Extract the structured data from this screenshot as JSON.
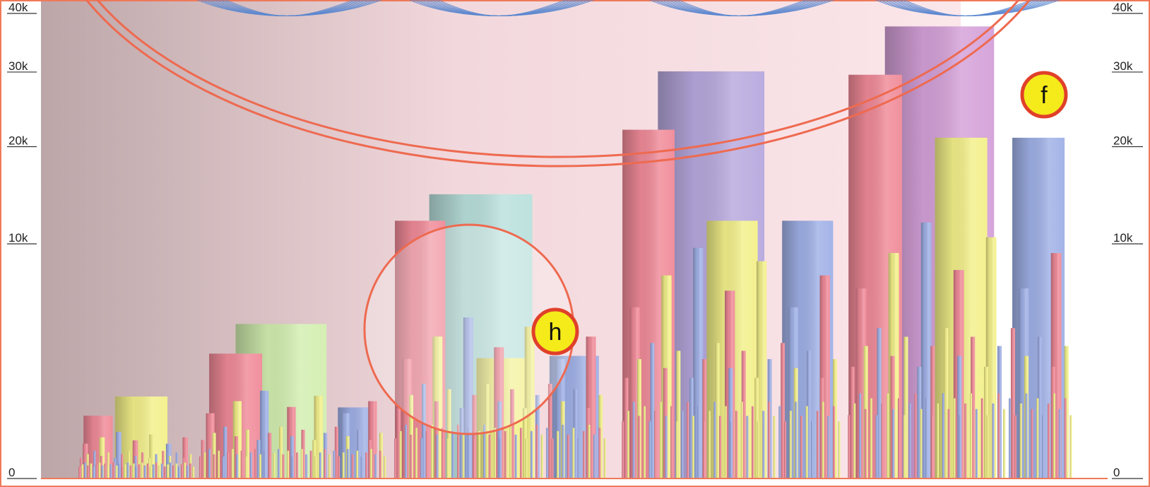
{
  "chart_data": {
    "type": "bar",
    "title": "",
    "xlabel": "",
    "ylabel": "",
    "ylim": [
      0,
      40000
    ],
    "y_ticks": [
      {
        "value": 0,
        "label": "0"
      },
      {
        "value": 10000,
        "label": "10k"
      },
      {
        "value": 20000,
        "label": "20k"
      },
      {
        "value": 30000,
        "label": "30k"
      },
      {
        "value": 40000,
        "label": "40k"
      }
    ],
    "grid": false,
    "legend": "none",
    "series_colors": {
      "red": "#f08a98",
      "yellow": "#f3f08a",
      "blue": "#9fb0e6",
      "green": "#d2eeb0",
      "teal": "#b9e0dc",
      "purple": "#b7a8dd",
      "magenta": "#d4a0d8"
    },
    "groups": [
      {
        "id": "g1",
        "bars": [
          {
            "color": "red",
            "value": 700
          },
          {
            "color": "yellow",
            "value": 1200
          }
        ]
      },
      {
        "id": "g2",
        "bars": [
          {
            "color": "red",
            "value": 2800
          },
          {
            "color": "green",
            "value": 4300
          },
          {
            "color": "blue",
            "value": 900
          }
        ]
      },
      {
        "id": "g3",
        "bars": [
          {
            "color": "red",
            "value": 12000
          },
          {
            "color": "teal",
            "value": 14600
          },
          {
            "color": "yellow",
            "value": 2600
          },
          {
            "color": "blue",
            "value": 2700
          }
        ]
      },
      {
        "id": "g4",
        "bars": [
          {
            "color": "red",
            "value": 22000
          },
          {
            "color": "purple",
            "value": 30000
          },
          {
            "color": "yellow",
            "value": 12000
          },
          {
            "color": "blue",
            "value": 12000
          }
        ]
      },
      {
        "id": "g5",
        "bars": [
          {
            "color": "red",
            "value": 29500
          },
          {
            "color": "magenta",
            "value": 37000
          },
          {
            "color": "yellow",
            "value": 21000
          },
          {
            "color": "blue",
            "value": 21000
          }
        ]
      }
    ],
    "annotations": [
      {
        "label": "f",
        "target": "g5"
      },
      {
        "label": "h",
        "target": "g3"
      }
    ]
  },
  "colors": {
    "ring": "#ee6a50",
    "marker_fill": "#f5ea1a",
    "marker_stroke": "#e0402a",
    "wave": "#5b87cf",
    "bg_dark": "#bca6a8",
    "bg_light": "#fbe6ea"
  }
}
